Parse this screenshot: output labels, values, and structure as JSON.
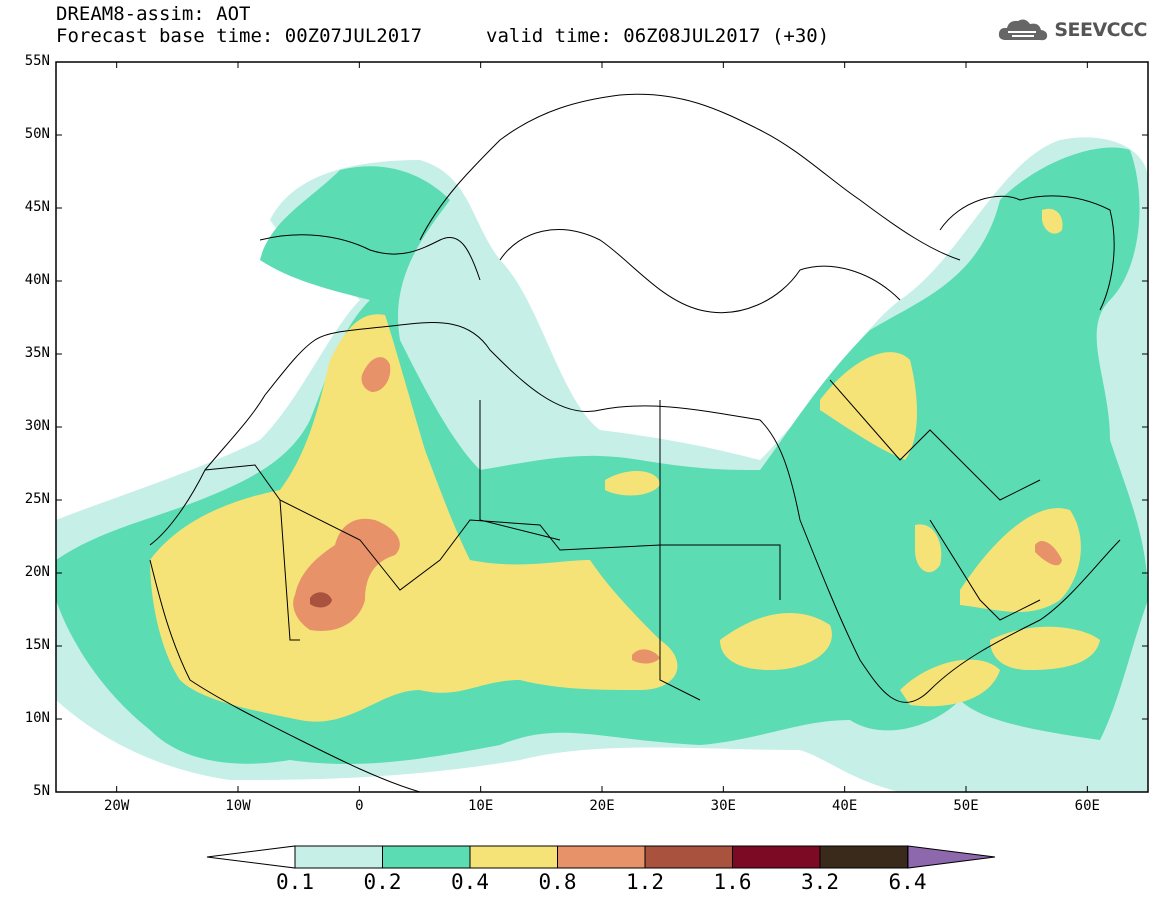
{
  "header": {
    "line1": "DREAM8-assim: AOT",
    "base_time": "Forecast base time: 00Z07JUL2017",
    "valid_time": "valid time: 06Z08JUL2017 (+30)"
  },
  "brand": {
    "name": "SEEVCCC",
    "icon": "cloud-icon"
  },
  "map": {
    "lat_labels": [
      "55N",
      "50N",
      "45N",
      "40N",
      "35N",
      "30N",
      "25N",
      "20N",
      "15N",
      "10N",
      "5N"
    ],
    "lon_labels": [
      "20W",
      "10W",
      "0",
      "10E",
      "20E",
      "30E",
      "40E",
      "50E",
      "60E"
    ],
    "extent": {
      "lon": [
        -25,
        65
      ],
      "lat": [
        5,
        55
      ]
    }
  },
  "colorbar": {
    "labels": [
      "0.1",
      "0.2",
      "0.4",
      "0.8",
      "1.2",
      "1.6",
      "3.2",
      "6.4"
    ],
    "colors": [
      "#c6efe8",
      "#5bdcb2",
      "#f6e377",
      "#e8926a",
      "#a9533f",
      "#7c0a24",
      "#3a2a1c",
      "#8e68ad"
    ]
  }
}
